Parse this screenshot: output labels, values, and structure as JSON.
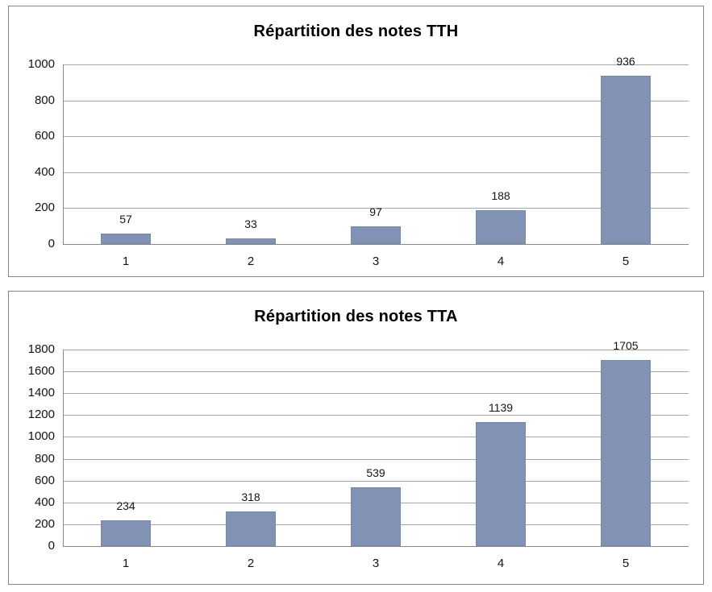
{
  "page": {
    "background": "#ffffff"
  },
  "style": {
    "bar_fill": "#8292B4",
    "bar_border": "#7788AB",
    "gridline": "#A6A6A6",
    "axis": "#898989",
    "frame_border": "#848484",
    "text": "#141414"
  },
  "chart_data": [
    {
      "type": "bar",
      "title": "Répartition des notes TTH",
      "categories": [
        "1",
        "2",
        "3",
        "4",
        "5"
      ],
      "values": [
        57,
        33,
        97,
        188,
        936
      ],
      "data_labels": [
        57,
        33,
        97,
        188,
        936
      ],
      "xlabel": "",
      "ylabel": "",
      "ylim": [
        0,
        1000
      ],
      "ytick_step": 200,
      "ytick_labels": [
        "0",
        "200",
        "400",
        "600",
        "800",
        "1000"
      ],
      "grid": true,
      "legend": false
    },
    {
      "type": "bar",
      "title": "Répartition des notes TTA",
      "categories": [
        "1",
        "2",
        "3",
        "4",
        "5"
      ],
      "values": [
        234,
        318,
        539,
        1139,
        1705
      ],
      "data_labels": [
        234,
        318,
        539,
        1139,
        1705
      ],
      "xlabel": "",
      "ylabel": "",
      "ylim": [
        0,
        1800
      ],
      "ytick_step": 200,
      "ytick_labels": [
        "0",
        "200",
        "400",
        "600",
        "800",
        "1000",
        "1200",
        "1400",
        "1600",
        "1800"
      ],
      "grid": true,
      "legend": false
    }
  ]
}
